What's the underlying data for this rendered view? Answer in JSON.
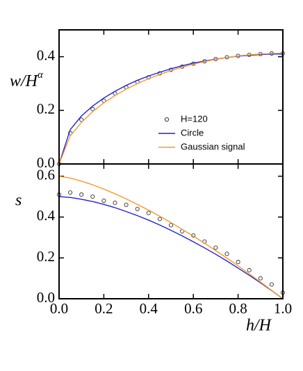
{
  "chart_data": [
    {
      "type": "line",
      "ylabel": "w/H",
      "ylabel_superscript": "α",
      "x": [
        0,
        0.05,
        0.1,
        0.15,
        0.2,
        0.25,
        0.3,
        0.35,
        0.4,
        0.45,
        0.5,
        0.55,
        0.6,
        0.65,
        0.7,
        0.75,
        0.8,
        0.85,
        0.9,
        0.95,
        1.0
      ],
      "xlim": [
        0,
        1
      ],
      "xticks": [
        0,
        0.2,
        0.4,
        0.6,
        0.8,
        1
      ],
      "ylim": [
        0,
        0.5
      ],
      "yticks": [
        {
          "value": 0,
          "label": "0.0"
        },
        0.2,
        0.4
      ],
      "legend": "center-right",
      "series": [
        {
          "name": "H=120",
          "marker": "open-circle",
          "color": "#333333",
          "values": [
            0,
            0.115,
            0.165,
            0.205,
            0.236,
            0.263,
            0.286,
            0.306,
            0.323,
            0.338,
            0.351,
            0.363,
            0.374,
            0.383,
            0.391,
            0.398,
            0.403,
            0.407,
            0.41,
            0.412,
            0.412
          ]
        },
        {
          "name": "Circle",
          "marker": "line",
          "color": "#2222cc",
          "values": [
            0,
            0.128,
            0.179,
            0.216,
            0.246,
            0.271,
            0.293,
            0.312,
            0.328,
            0.342,
            0.355,
            0.366,
            0.376,
            0.384,
            0.391,
            0.397,
            0.402,
            0.405,
            0.408,
            0.41,
            0.41
          ]
        },
        {
          "name": "Gaussian signal",
          "marker": "line",
          "color": "#f39a2b",
          "values": [
            0,
            0.105,
            0.155,
            0.195,
            0.228,
            0.255,
            0.279,
            0.3,
            0.318,
            0.334,
            0.348,
            0.361,
            0.372,
            0.382,
            0.39,
            0.397,
            0.403,
            0.407,
            0.41,
            0.412,
            0.413
          ]
        }
      ]
    },
    {
      "type": "line",
      "ylabel": "s",
      "xlabel": "h/H",
      "x": [
        0,
        0.05,
        0.1,
        0.15,
        0.2,
        0.25,
        0.3,
        0.35,
        0.4,
        0.45,
        0.5,
        0.55,
        0.6,
        0.65,
        0.7,
        0.75,
        0.8,
        0.85,
        0.9,
        0.95,
        1.0
      ],
      "xlim": [
        0,
        1
      ],
      "xticks": [
        {
          "value": 0,
          "label": "0.0"
        },
        0.2,
        0.4,
        0.6,
        0.8,
        {
          "value": 1,
          "label": "1.0"
        }
      ],
      "ylim": [
        0,
        0.66
      ],
      "yticks": [
        {
          "value": 0,
          "label": "0.0"
        },
        0.2,
        0.4,
        0.6
      ],
      "series": [
        {
          "marker": "open-circle",
          "color": "#333333",
          "values": [
            0.51,
            0.52,
            0.51,
            0.5,
            0.48,
            0.47,
            0.46,
            0.44,
            0.42,
            0.39,
            0.36,
            0.33,
            0.31,
            0.28,
            0.25,
            0.22,
            0.18,
            0.14,
            0.1,
            0.07,
            0.03
          ]
        },
        {
          "marker": "line",
          "color": "#2222cc",
          "values": [
            0.5,
            0.496,
            0.487,
            0.476,
            0.462,
            0.446,
            0.427,
            0.407,
            0.385,
            0.361,
            0.335,
            0.308,
            0.279,
            0.249,
            0.218,
            0.185,
            0.15,
            0.115,
            0.078,
            0.04,
            0
          ]
        },
        {
          "marker": "line",
          "color": "#f39a2b",
          "values": [
            0.6,
            0.591,
            0.576,
            0.558,
            0.537,
            0.514,
            0.489,
            0.462,
            0.434,
            0.404,
            0.373,
            0.34,
            0.307,
            0.272,
            0.236,
            0.199,
            0.161,
            0.122,
            0.082,
            0.041,
            0
          ]
        }
      ]
    }
  ]
}
